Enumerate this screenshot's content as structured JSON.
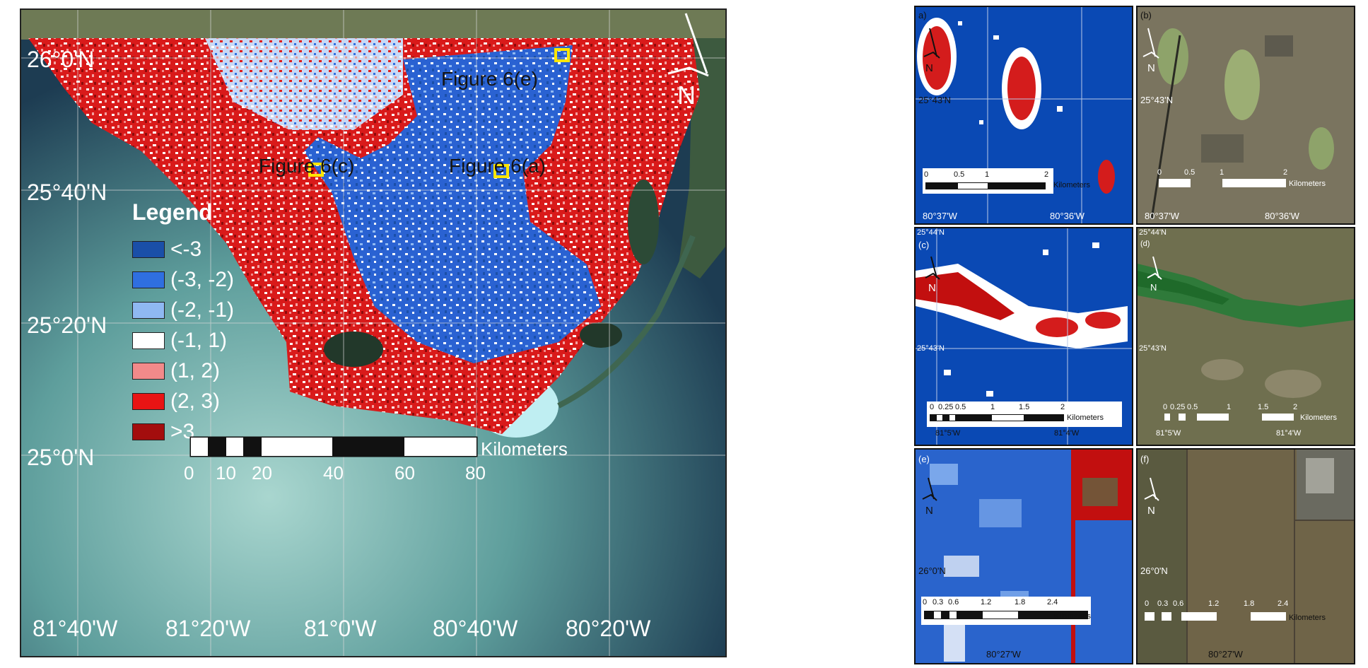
{
  "main_map": {
    "lat_labels": [
      "26°0'N",
      "25°40'N",
      "25°20'N",
      "25°0'N"
    ],
    "lon_labels": [
      "81°40'W",
      "81°20'W",
      "81°0'W",
      "80°40'W",
      "80°20'W"
    ],
    "figure_labels": [
      "Figure 6(e)",
      "Figure 6(c)",
      "Figure 6(a)"
    ],
    "north_label": "N",
    "legend": {
      "title": "Legend",
      "items": [
        {
          "label": "<-3",
          "color": "#1a4fa8"
        },
        {
          "label": "(-3, -2)",
          "color": "#2f6fe0"
        },
        {
          "label": "(-2, -1)",
          "color": "#8fb8f2"
        },
        {
          "label": "(-1, 1)",
          "color": "#ffffff"
        },
        {
          "label": "(1, 2)",
          "color": "#f28a8a"
        },
        {
          "label": "(2, 3)",
          "color": "#e81414"
        },
        {
          "label": ">3",
          "color": "#a30d0d"
        }
      ]
    },
    "scalebar": {
      "unit": "Kilometers",
      "ticks": [
        "0",
        "10",
        "20",
        "40",
        "60",
        "80"
      ]
    }
  },
  "panels": [
    {
      "id": "a",
      "label": "a)",
      "lat": "25°43'N",
      "lon_left": "80°37'W",
      "lon_right": "80°36'W",
      "scale_ticks": [
        "0",
        "0.5",
        "1",
        "2"
      ],
      "scale_unit": "Kilometers",
      "north": "N"
    },
    {
      "id": "b",
      "label": "(b)",
      "lat": "25°43'N",
      "lon_left": "80°37'W",
      "lon_right": "80°36'W",
      "scale_ticks": [
        "0",
        "0.5",
        "1",
        "2"
      ],
      "scale_unit": "Kilometers",
      "north": "N"
    },
    {
      "id": "c",
      "label": "(c)",
      "lat_top": "25°44'N",
      "lat": "25°43'N",
      "lon_left": "81°5'W",
      "lon_right": "81°4'W",
      "scale_ticks": [
        "0",
        "0.25",
        "0.5",
        "1",
        "1.5",
        "2"
      ],
      "scale_unit": "Kilometers",
      "north": "N"
    },
    {
      "id": "d",
      "label": "(d)",
      "lat_top": "25°44'N",
      "lat": "25°43'N",
      "lon_left": "81°5'W",
      "lon_right": "81°4'W",
      "scale_ticks": [
        "0",
        "0.25",
        "0.5",
        "1",
        "1.5",
        "2"
      ],
      "scale_unit": "Kilometers",
      "north": "N"
    },
    {
      "id": "e",
      "label": "(e)",
      "lat": "26°0'N",
      "lon": "80°27'W",
      "scale_ticks": [
        "0",
        "0.3",
        "0.6",
        "1.2",
        "1.8",
        "2.4"
      ],
      "scale_unit": "Kilometers",
      "north": "N"
    },
    {
      "id": "f",
      "label": "(f)",
      "lat": "26°0'N",
      "lon": "80°27'W",
      "scale_ticks": [
        "0",
        "0.3",
        "0.6",
        "1.2",
        "1.8",
        "2.4"
      ],
      "scale_unit": "Kilometers",
      "north": "N"
    }
  ]
}
